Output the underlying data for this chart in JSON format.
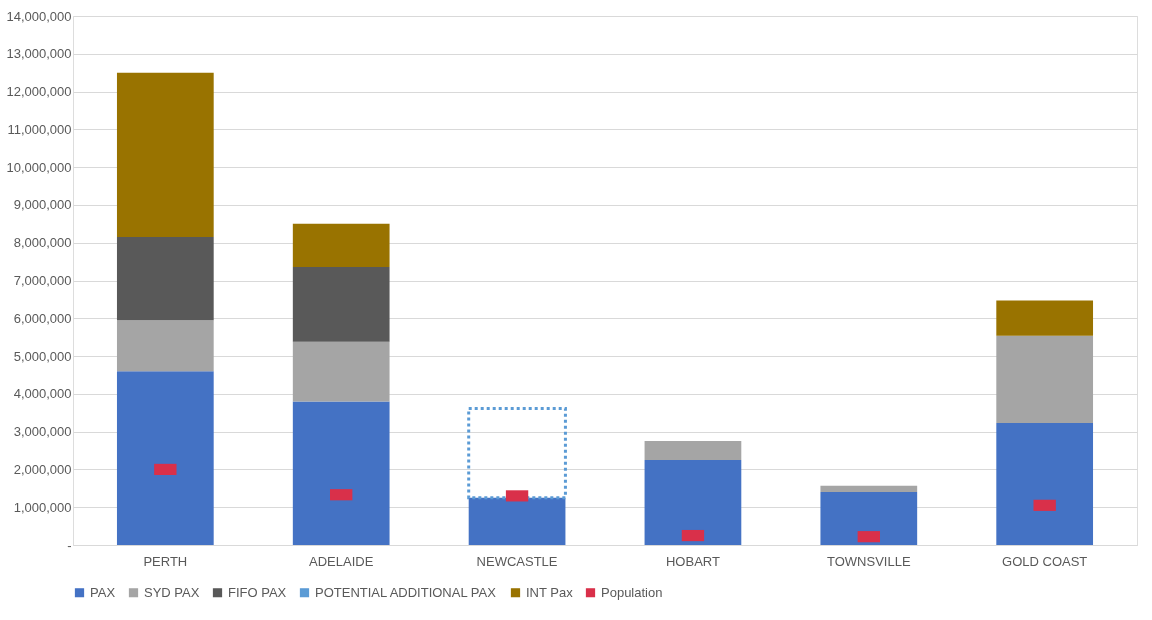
{
  "chart_data": {
    "type": "bar",
    "stacked": true,
    "categories": [
      "PERTH",
      "ADELAIDE",
      "NEWCASTLE",
      "HOBART",
      "TOWNSVILLE",
      "GOLD COAST"
    ],
    "series": [
      {
        "name": "PAX",
        "color": "#4472c4",
        "values": [
          4600000,
          3800000,
          1250000,
          2250000,
          1400000,
          3230000
        ]
      },
      {
        "name": "SYD PAX",
        "color": "#a5a5a5",
        "values": [
          1350000,
          1580000,
          null,
          500000,
          170000,
          2310000
        ]
      },
      {
        "name": "FIFO PAX",
        "color": "#595959",
        "values": [
          2200000,
          1980000,
          null,
          null,
          null,
          null
        ]
      },
      {
        "name": "POTENTIAL ADDITIONAL PAX",
        "color": "#5b9bd5",
        "line_style": "dotted",
        "values": [
          null,
          null,
          2360000,
          null,
          null,
          null
        ]
      },
      {
        "name": "INT Pax",
        "color": "#997300",
        "values": [
          4350000,
          1140000,
          null,
          null,
          null,
          930000
        ]
      },
      {
        "name": "Population",
        "color": "#d9304a",
        "type": "scatter",
        "marker": "square",
        "values": [
          2000000,
          1330000,
          1300000,
          250000,
          220000,
          1050000
        ]
      }
    ],
    "ylim": [
      0,
      14000000
    ],
    "yticks": [
      {
        "value": 0,
        "label": "-"
      },
      {
        "value": 1000000,
        "label": "1,000,000"
      },
      {
        "value": 2000000,
        "label": "2,000,000"
      },
      {
        "value": 3000000,
        "label": "3,000,000"
      },
      {
        "value": 4000000,
        "label": "4,000,000"
      },
      {
        "value": 5000000,
        "label": "5,000,000"
      },
      {
        "value": 6000000,
        "label": "6,000,000"
      },
      {
        "value": 7000000,
        "label": "7,000,000"
      },
      {
        "value": 8000000,
        "label": "8,000,000"
      },
      {
        "value": 9000000,
        "label": "9,000,000"
      },
      {
        "value": 10000000,
        "label": "10,000,000"
      },
      {
        "value": 11000000,
        "label": "11,000,000"
      },
      {
        "value": 12000000,
        "label": "12,000,000"
      },
      {
        "value": 13000000,
        "label": "13,000,000"
      },
      {
        "value": 14000000,
        "label": "14,000,000"
      }
    ],
    "grid": "y",
    "legend": "bottom"
  }
}
